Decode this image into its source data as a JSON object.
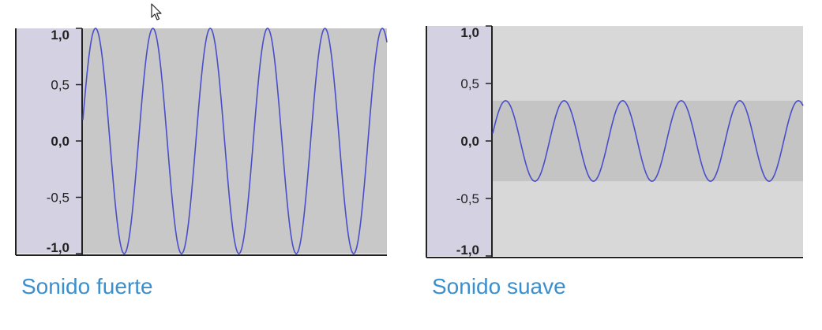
{
  "colors": {
    "wave": "#4a4ec8",
    "ruler_bg": "#d4d2e2",
    "plot_bg_loud": "#c8c8c8",
    "plot_bg_soft": "#d8d8d8",
    "band_soft": "#c4c4c4",
    "caption": "#3a8fcf"
  },
  "chart_data": [
    {
      "type": "line",
      "caption": "Sonido fuerte",
      "ylim": [
        -1.0,
        1.0
      ],
      "yticks": [
        "1,0",
        "0,5",
        "0,0",
        "-0,5",
        "-1,0"
      ],
      "bold_ticks": [
        "1,0",
        "0,0",
        "-1,0"
      ],
      "amplitude": 1.0,
      "cycles": 5.3,
      "phase": 0.22,
      "series": [
        {
          "values": []
        }
      ]
    },
    {
      "type": "line",
      "caption": "Sonido suave",
      "ylim": [
        -1.0,
        1.0
      ],
      "yticks": [
        "1,0",
        "0,5",
        "0,0",
        "-0,5",
        "-1,0"
      ],
      "bold_ticks": [
        "1,0",
        "0,0",
        "-1,0"
      ],
      "amplitude": 0.35,
      "cycles": 5.3,
      "phase": 0.22,
      "series": [
        {
          "values": []
        }
      ]
    }
  ]
}
